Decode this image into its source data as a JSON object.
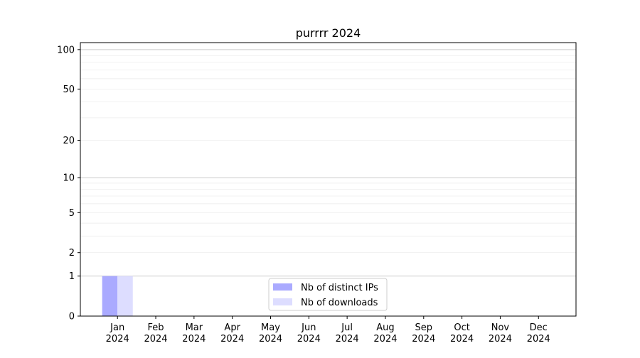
{
  "chart_data": {
    "type": "bar",
    "title": "purrrr 2024",
    "xlabel": "",
    "ylabel": "",
    "y_scale": "log(1+y)",
    "ylim": [
      0,
      113
    ],
    "y_ticks": [
      0,
      1,
      2,
      5,
      10,
      20,
      50,
      100
    ],
    "grid": true,
    "legend_position": "bottom-center",
    "categories": [
      "Jan\n2024",
      "Feb\n2024",
      "Mar\n2024",
      "Apr\n2024",
      "May\n2024",
      "Jun\n2024",
      "Jul\n2024",
      "Aug\n2024",
      "Sep\n2024",
      "Oct\n2024",
      "Nov\n2024",
      "Dec\n2024"
    ],
    "series": [
      {
        "name": "Nb of distinct IPs",
        "color": "#aaaaff",
        "values": [
          1,
          0,
          0,
          0,
          0,
          0,
          0,
          0,
          0,
          0,
          0,
          0
        ]
      },
      {
        "name": "Nb of downloads",
        "color": "#ddddff",
        "values": [
          1,
          0,
          0,
          0,
          0,
          0,
          0,
          0,
          0,
          0,
          0,
          0
        ]
      }
    ]
  }
}
